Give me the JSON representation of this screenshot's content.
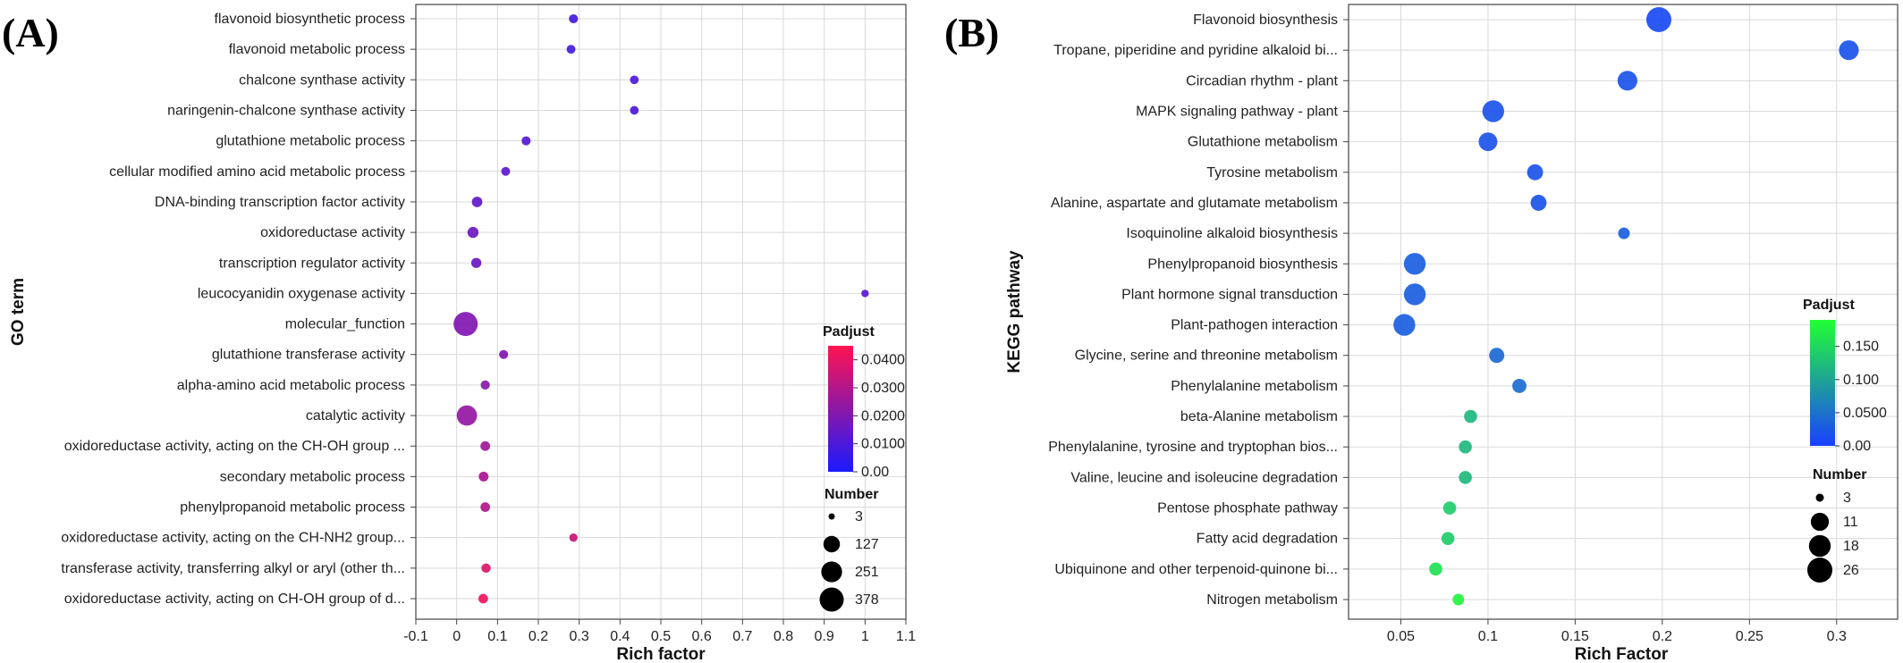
{
  "panels": [
    {
      "panel_label": "(A)",
      "chart_data": {
        "type": "scatter",
        "xlabel": "Rich factor",
        "ylabel": "GO term",
        "xlim": [
          -0.1,
          1.1
        ],
        "xticks": [
          "-0.1",
          "0",
          "0.1",
          "0.2",
          "0.3",
          "0.4",
          "0.5",
          "0.6",
          "0.7",
          "0.8",
          "0.9",
          "1",
          "1.1"
        ],
        "grid": true,
        "categories": [
          "flavonoid biosynthetic process",
          "flavonoid metabolic process",
          "chalcone synthase activity",
          "naringenin-chalcone synthase activity",
          "glutathione metabolic process",
          "cellular modified amino acid metabolic process",
          "DNA-binding transcription factor activity",
          "oxidoreductase activity",
          "transcription regulator activity",
          "leucocyanidin oxygenase activity",
          "molecular_function",
          "glutathione transferase activity",
          "alpha-amino acid metabolic process",
          "catalytic activity",
          "oxidoreductase activity, acting on the CH-OH group ...",
          "secondary metabolic process",
          "phenylpropanoid metabolic process",
          "oxidoreductase activity, acting on the CH-NH2 group...",
          "transferase activity, transferring alkyl or aryl (other th...",
          "oxidoreductase activity, acting on CH-OH group of d..."
        ],
        "rich_factor": [
          0.286,
          0.28,
          0.435,
          0.435,
          0.17,
          0.12,
          0.05,
          0.04,
          0.048,
          1.0,
          0.022,
          0.115,
          0.07,
          0.025,
          0.07,
          0.066,
          0.07,
          0.286,
          0.072,
          0.065
        ],
        "number": [
          12,
          11,
          10,
          10,
          12,
          11,
          24,
          30,
          21,
          5,
          378,
          12,
          13,
          235,
          17,
          18,
          16,
          8,
          14,
          16
        ],
        "padjust": [
          0.008,
          0.008,
          0.01,
          0.01,
          0.012,
          0.013,
          0.014,
          0.016,
          0.016,
          0.012,
          0.02,
          0.02,
          0.022,
          0.024,
          0.026,
          0.028,
          0.03,
          0.034,
          0.038,
          0.042
        ],
        "color_legend": {
          "title": "Padjust",
          "ticks": [
            "0.0400",
            "0.0300",
            "0.0200",
            "0.0100",
            "0.00"
          ],
          "max": 0.045,
          "colors": [
            "#1a1aff",
            "#ff1450"
          ]
        },
        "size_legend": {
          "title": "Number",
          "labels": [
            "3",
            "127",
            "251",
            "378"
          ],
          "values": [
            3,
            127,
            251,
            378
          ]
        }
      }
    },
    {
      "panel_label": "(B)",
      "chart_data": {
        "type": "scatter",
        "xlabel": "Rich Factor",
        "ylabel": "KEGG pathway",
        "xlim": [
          0.02,
          0.335
        ],
        "xticks": [
          "0.05",
          "0.1",
          "0.15",
          "0.2",
          "0.25",
          "0.3"
        ],
        "grid": true,
        "categories": [
          "Flavonoid biosynthesis",
          "Tropane, piperidine and pyridine alkaloid bi...",
          "Circadian rhythm - plant",
          "MAPK signaling pathway - plant",
          "Glutathione metabolism",
          "Tyrosine metabolism",
          "Alanine, aspartate and glutamate metabolism",
          "Isoquinoline alkaloid biosynthesis",
          "Phenylpropanoid biosynthesis",
          "Plant hormone signal transduction",
          "Plant-pathogen interaction",
          "Glycine, serine and threonine metabolism",
          "Phenylalanine metabolism",
          "beta-Alanine metabolism",
          "Phenylalanine, tyrosine and tryptophan bios...",
          "Valine, leucine and isoleucine degradation",
          "Pentose phosphate pathway",
          "Fatty acid degradation",
          "Ubiquinone and other terpenoid-quinone bi...",
          "Nitrogen metabolism"
        ],
        "rich_factor": [
          0.198,
          0.307,
          0.18,
          0.103,
          0.1,
          0.127,
          0.129,
          0.178,
          0.058,
          0.058,
          0.052,
          0.105,
          0.118,
          0.09,
          0.087,
          0.087,
          0.078,
          0.077,
          0.07,
          0.083
        ],
        "number": [
          26,
          14,
          14,
          18,
          12,
          8,
          8,
          4,
          18,
          18,
          18,
          7,
          6,
          5,
          5,
          5,
          5,
          5,
          5,
          4
        ],
        "padjust": [
          0.01,
          0.02,
          0.02,
          0.02,
          0.02,
          0.02,
          0.02,
          0.03,
          0.03,
          0.03,
          0.03,
          0.04,
          0.045,
          0.12,
          0.12,
          0.12,
          0.14,
          0.14,
          0.16,
          0.18
        ],
        "color_legend": {
          "title": "Padjust",
          "ticks": [
            "0.150",
            "0.100",
            "0.0500",
            "0.00"
          ],
          "max": 0.19,
          "colors": [
            "#1a40ff",
            "#22ff33"
          ]
        },
        "size_legend": {
          "title": "Number",
          "labels": [
            "3",
            "11",
            "18",
            "26"
          ],
          "values": [
            3,
            11,
            18,
            26
          ]
        }
      }
    }
  ]
}
